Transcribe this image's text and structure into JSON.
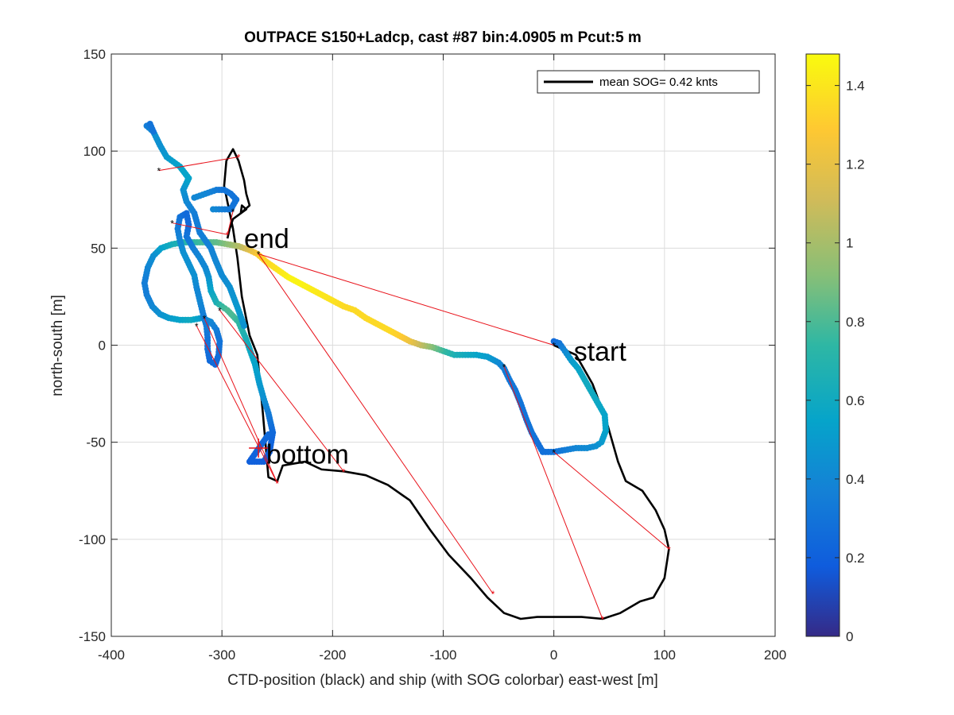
{
  "chart_data": {
    "type": "scatter",
    "title": "OUTPACE S150+Ladcp, cast #87 bin:4.0905 m  Pcut:5 m",
    "xlabel": "CTD-position (black) and ship (with SOG colorbar) east-west [m]",
    "ylabel": "north-south [m]",
    "xlim": [
      -400,
      200
    ],
    "ylim": [
      -150,
      150
    ],
    "xticks": [
      -400,
      -300,
      -200,
      -100,
      0,
      100,
      200
    ],
    "yticks": [
      -150,
      -100,
      -50,
      0,
      50,
      100,
      150
    ],
    "grid": true,
    "legend": {
      "placement": "top-right",
      "entries": [
        "mean SOG=  0.42 knts"
      ]
    },
    "colorbar": {
      "min": 0,
      "max": 1.48,
      "ticks": [
        0,
        0.2,
        0.4,
        0.6,
        0.8,
        1,
        1.2,
        1.4
      ],
      "tick_labels": [
        "0",
        "0.2",
        "0.4",
        "0.6",
        "0.8",
        "1",
        "1.2",
        "1.4"
      ],
      "colormap": "parula"
    },
    "annotations": [
      {
        "text": "start",
        "x": 18,
        "y": -3
      },
      {
        "text": "bottom",
        "x": -260,
        "y": -56
      },
      {
        "text": "end",
        "x": -280,
        "y": 55
      }
    ],
    "bottom_marker": {
      "x": -267,
      "y": -53
    },
    "ctd_track": [
      [
        0,
        0
      ],
      [
        20,
        -5
      ],
      [
        35,
        -20
      ],
      [
        48,
        -40
      ],
      [
        58,
        -60
      ],
      [
        65,
        -70
      ],
      [
        80,
        -75
      ],
      [
        92,
        -85
      ],
      [
        100,
        -95
      ],
      [
        104,
        -105
      ],
      [
        100,
        -120
      ],
      [
        90,
        -130
      ],
      [
        78,
        -132
      ],
      [
        60,
        -138
      ],
      [
        44,
        -141
      ],
      [
        25,
        -140
      ],
      [
        5,
        -140
      ],
      [
        -15,
        -140
      ],
      [
        -30,
        -141
      ],
      [
        -45,
        -138
      ],
      [
        -60,
        -130
      ],
      [
        -75,
        -120
      ],
      [
        -95,
        -108
      ],
      [
        -112,
        -95
      ],
      [
        -130,
        -80
      ],
      [
        -150,
        -72
      ],
      [
        -170,
        -67
      ],
      [
        -190,
        -65
      ],
      [
        -210,
        -64
      ],
      [
        -225,
        -60
      ],
      [
        -245,
        -62
      ],
      [
        -250,
        -70
      ],
      [
        -258,
        -68
      ],
      [
        -263,
        -35
      ],
      [
        -268,
        -5
      ],
      [
        -275,
        5
      ],
      [
        -282,
        25
      ],
      [
        -286,
        45
      ],
      [
        -290,
        60
      ],
      [
        -298,
        82
      ],
      [
        -296,
        95
      ],
      [
        -290,
        101
      ],
      [
        -285,
        95
      ],
      [
        -280,
        85
      ],
      [
        -278,
        78
      ],
      [
        -275,
        72
      ],
      [
        -283,
        68
      ],
      [
        -282,
        72
      ],
      [
        -278,
        70
      ],
      [
        -290,
        65
      ],
      [
        -293,
        60
      ],
      [
        -295,
        55
      ]
    ],
    "ship_track": [
      [
        0,
        2,
        0.25
      ],
      [
        5,
        1,
        0.3
      ],
      [
        10,
        -3,
        0.4
      ],
      [
        16,
        -8,
        0.5
      ],
      [
        22,
        -12,
        0.55
      ],
      [
        28,
        -18,
        0.6
      ],
      [
        34,
        -24,
        0.6
      ],
      [
        40,
        -30,
        0.58
      ],
      [
        46,
        -36,
        0.55
      ],
      [
        47,
        -44,
        0.55
      ],
      [
        43,
        -50,
        0.5
      ],
      [
        38,
        -52,
        0.45
      ],
      [
        30,
        -53,
        0.42
      ],
      [
        20,
        -53,
        0.4
      ],
      [
        10,
        -54,
        0.35
      ],
      [
        0,
        -55,
        0.3
      ],
      [
        -10,
        -55,
        0.28
      ],
      [
        -15,
        -50,
        0.28
      ],
      [
        -20,
        -45,
        0.3
      ],
      [
        -25,
        -38,
        0.3
      ],
      [
        -30,
        -30,
        0.3
      ],
      [
        -35,
        -23,
        0.32
      ],
      [
        -40,
        -18,
        0.32
      ],
      [
        -45,
        -12,
        0.35
      ],
      [
        -50,
        -9,
        0.4
      ],
      [
        -60,
        -6,
        0.5
      ],
      [
        -70,
        -5,
        0.55
      ],
      [
        -80,
        -5,
        0.6
      ],
      [
        -90,
        -5,
        0.65
      ],
      [
        -100,
        -3,
        0.75
      ],
      [
        -110,
        -1,
        0.9
      ],
      [
        -120,
        0,
        1.05
      ],
      [
        -130,
        2,
        1.2
      ],
      [
        -140,
        5,
        1.3
      ],
      [
        -150,
        8,
        1.35
      ],
      [
        -160,
        11,
        1.35
      ],
      [
        -170,
        14,
        1.35
      ],
      [
        -180,
        18,
        1.35
      ],
      [
        -190,
        20,
        1.35
      ],
      [
        -200,
        23,
        1.38
      ],
      [
        -210,
        26,
        1.4
      ],
      [
        -220,
        29,
        1.42
      ],
      [
        -230,
        32,
        1.45
      ],
      [
        -240,
        35,
        1.45
      ],
      [
        -250,
        39,
        1.4
      ],
      [
        -260,
        43,
        1.35
      ],
      [
        -268,
        47,
        1.3
      ],
      [
        -275,
        49,
        1.2
      ],
      [
        -285,
        51,
        1.05
      ],
      [
        -295,
        52,
        0.95
      ],
      [
        -305,
        53,
        0.85
      ],
      [
        -315,
        53,
        0.8
      ],
      [
        -325,
        53,
        0.75
      ],
      [
        -335,
        53,
        0.7
      ],
      [
        -345,
        52,
        0.65
      ],
      [
        -355,
        50,
        0.55
      ],
      [
        -362,
        46,
        0.45
      ],
      [
        -367,
        40,
        0.4
      ],
      [
        -370,
        32,
        0.35
      ],
      [
        -368,
        26,
        0.35
      ],
      [
        -363,
        20,
        0.4
      ],
      [
        -356,
        16,
        0.45
      ],
      [
        -348,
        14,
        0.5
      ],
      [
        -338,
        13,
        0.55
      ],
      [
        -328,
        13,
        0.6
      ],
      [
        -318,
        14,
        0.5
      ],
      [
        -310,
        12,
        0.4
      ],
      [
        -305,
        8,
        0.35
      ],
      [
        -302,
        2,
        0.3
      ],
      [
        -303,
        -5,
        0.28
      ],
      [
        -306,
        -10,
        0.25
      ],
      [
        -311,
        -8,
        0.25
      ],
      [
        -313,
        -2,
        0.28
      ],
      [
        -313,
        4,
        0.3
      ],
      [
        -314,
        10,
        0.35
      ],
      [
        -317,
        16,
        0.35
      ],
      [
        -320,
        23,
        0.4
      ],
      [
        -323,
        30,
        0.4
      ],
      [
        -325,
        36,
        0.45
      ],
      [
        -330,
        42,
        0.45
      ],
      [
        -335,
        48,
        0.45
      ],
      [
        -338,
        54,
        0.4
      ],
      [
        -340,
        60,
        0.35
      ],
      [
        -338,
        66,
        0.3
      ],
      [
        -332,
        68,
        0.25
      ],
      [
        -330,
        62,
        0.25
      ],
      [
        -332,
        56,
        0.3
      ],
      [
        -326,
        50,
        0.35
      ],
      [
        -320,
        45,
        0.4
      ],
      [
        -315,
        40,
        0.4
      ],
      [
        -312,
        35,
        0.45
      ],
      [
        -310,
        28,
        0.55
      ],
      [
        -305,
        22,
        0.65
      ],
      [
        -300,
        20,
        0.75
      ],
      [
        -295,
        18,
        0.8
      ],
      [
        -290,
        15,
        0.8
      ],
      [
        -285,
        12,
        0.75
      ],
      [
        -282,
        8,
        0.7
      ],
      [
        -278,
        3,
        0.65
      ],
      [
        -275,
        -2,
        0.6
      ],
      [
        -270,
        -10,
        0.55
      ],
      [
        -266,
        -20,
        0.5
      ],
      [
        -262,
        -28,
        0.45
      ],
      [
        -258,
        -35,
        0.35
      ],
      [
        -254,
        -45,
        0.25
      ],
      [
        -257,
        -55,
        0.2
      ],
      [
        -262,
        -60,
        0.2
      ],
      [
        -275,
        -60,
        0.2
      ],
      [
        -258,
        -46,
        0.25
      ],
      [
        -280,
        10,
        0.45
      ],
      [
        -285,
        18,
        0.5
      ],
      [
        -293,
        30,
        0.45
      ],
      [
        -300,
        36,
        0.42
      ],
      [
        -306,
        44,
        0.4
      ],
      [
        -310,
        50,
        0.38
      ],
      [
        -320,
        58,
        0.35
      ],
      [
        -325,
        68,
        0.35
      ],
      [
        -332,
        74,
        0.4
      ],
      [
        -335,
        80,
        0.45
      ],
      [
        -330,
        86,
        0.55
      ],
      [
        -338,
        92,
        0.55
      ],
      [
        -350,
        97,
        0.5
      ],
      [
        -356,
        103,
        0.45
      ],
      [
        -362,
        110,
        0.45
      ],
      [
        -368,
        113,
        0.35
      ],
      [
        -365,
        114,
        0.3
      ],
      [
        -362,
        110,
        0.3
      ],
      [
        -325,
        76,
        0.4
      ],
      [
        -315,
        78,
        0.4
      ],
      [
        -305,
        80,
        0.35
      ],
      [
        -298,
        80,
        0.3
      ],
      [
        -292,
        78,
        0.3
      ],
      [
        -287,
        75,
        0.3
      ],
      [
        -292,
        70,
        0.3
      ],
      [
        -300,
        70,
        0.35
      ],
      [
        -308,
        70,
        0.4
      ]
    ],
    "ctd_markers": [
      [
        0,
        0
      ],
      [
        -45,
        -11
      ],
      [
        0,
        -55
      ],
      [
        -267,
        47
      ],
      [
        -302,
        18
      ],
      [
        -316,
        14
      ],
      [
        -323,
        10
      ],
      [
        -345,
        63
      ],
      [
        -290,
        69
      ],
      [
        -357,
        90
      ]
    ],
    "red_markers": [
      [
        -250,
        -71
      ],
      [
        -55,
        -128
      ],
      [
        44,
        -141
      ],
      [
        104,
        -105
      ],
      [
        -190,
        -65
      ],
      [
        -295,
        57
      ],
      [
        -285,
        97
      ]
    ],
    "red_lines": [
      [
        [
          0,
          0
        ],
        [
          -267,
          47
        ]
      ],
      [
        [
          -45,
          -11
        ],
        [
          44,
          -141
        ]
      ],
      [
        [
          0,
          -55
        ],
        [
          104,
          -105
        ]
      ],
      [
        [
          -267,
          47
        ],
        [
          -55,
          -128
        ]
      ],
      [
        [
          -302,
          18
        ],
        [
          -190,
          -65
        ]
      ],
      [
        [
          -316,
          14
        ],
        [
          -250,
          -71
        ]
      ],
      [
        [
          -323,
          10
        ],
        [
          -250,
          -71
        ]
      ],
      [
        [
          -345,
          63
        ],
        [
          -295,
          57
        ]
      ],
      [
        [
          -290,
          69
        ],
        [
          -295,
          57
        ]
      ],
      [
        [
          -357,
          90
        ],
        [
          -285,
          97
        ]
      ]
    ]
  }
}
